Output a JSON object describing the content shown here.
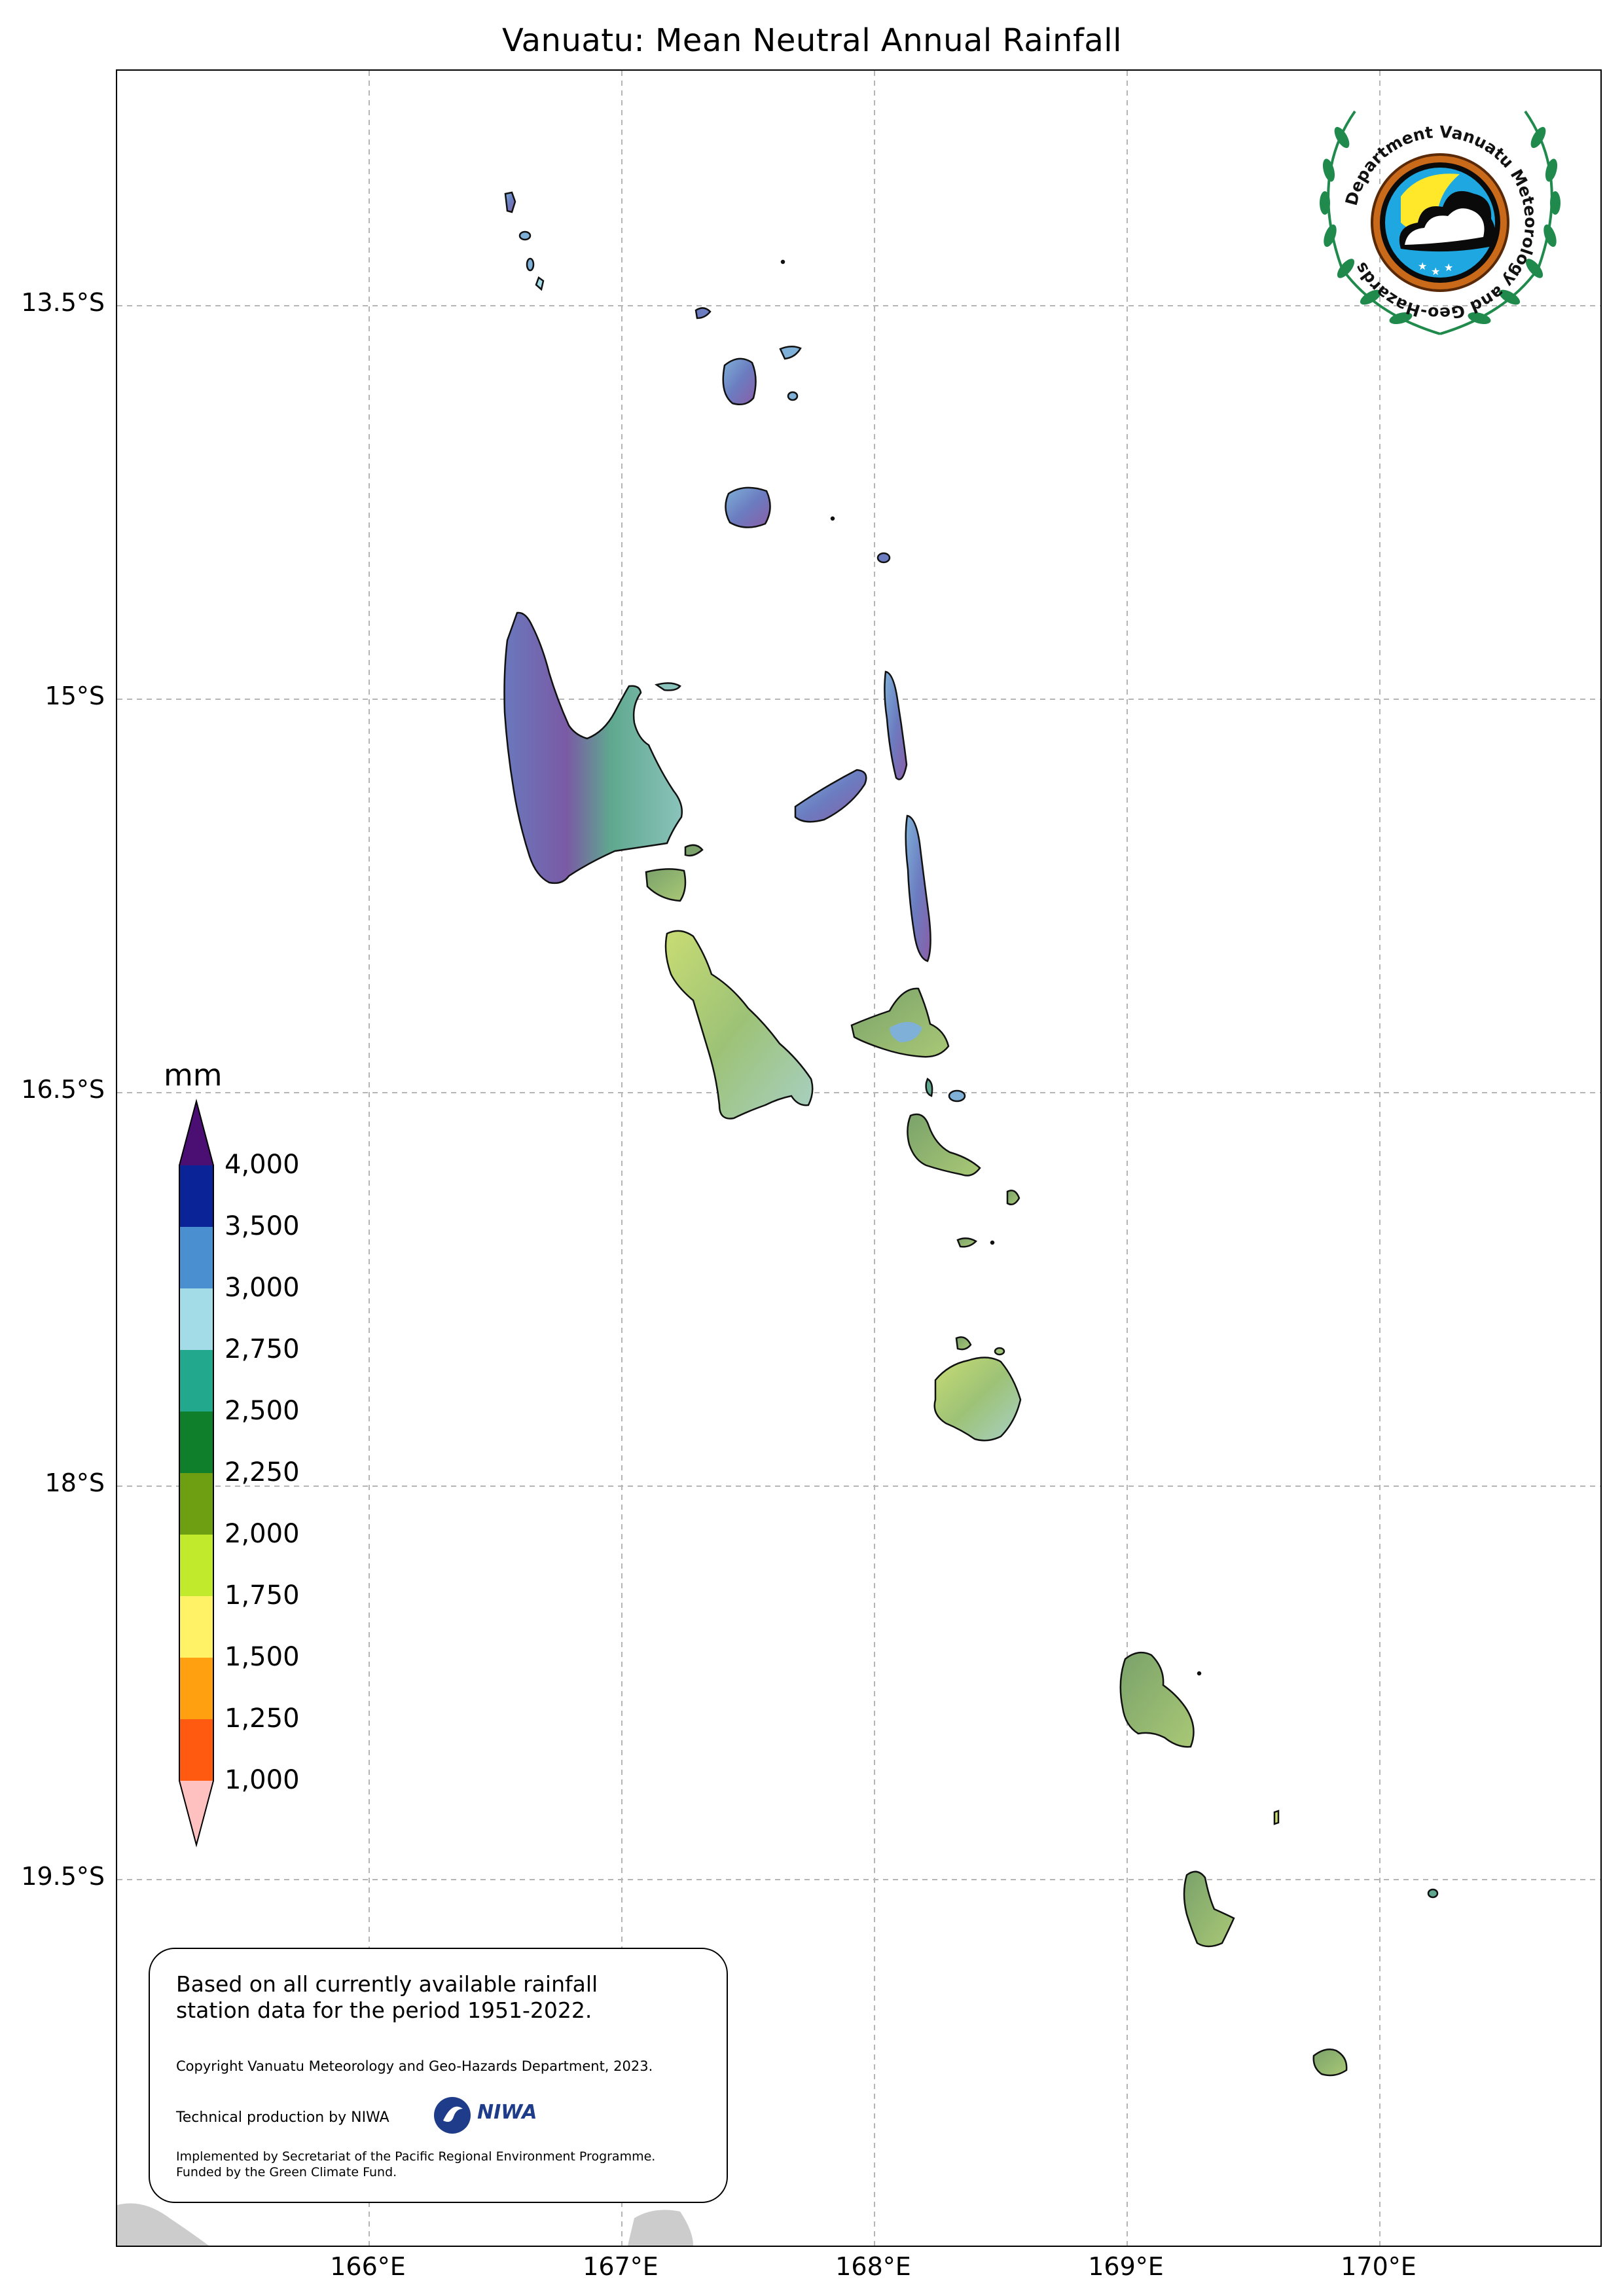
{
  "title": "Vanuatu: Mean Neutral Annual Rainfall",
  "axes": {
    "latitude_labels": [
      "13.5°S",
      "15°S",
      "16.5°S",
      "18°S",
      "19.5°S"
    ],
    "longitude_labels": [
      "166°E",
      "167°E",
      "168°E",
      "169°E",
      "170°E"
    ]
  },
  "colorbar": {
    "unit": "mm",
    "ticks": [
      "4,000",
      "3,500",
      "3,000",
      "2,750",
      "2,500",
      "2,250",
      "2,000",
      "1,750",
      "1,500",
      "1,250",
      "1,000"
    ],
    "colors": [
      "#4b0f73",
      "#0a2397",
      "#4a8fcf",
      "#a3dce6",
      "#22a88c",
      "#0f7f2c",
      "#6e9e12",
      "#c2ea2c",
      "#fff266",
      "#ffa010",
      "#ff5a10",
      "#ffc0c0"
    ]
  },
  "logo": {
    "text": "Department Vanuatu Meteorology and Geo-Hazards"
  },
  "info_box": {
    "main_text": "Based on all currently available rainfall\nstation data for the period 1951-2022.",
    "copyright": "Copyright Vanuatu Meteorology and Geo-Hazards Department, 2023.",
    "technical": "Technical production by NIWA",
    "niwa_name": "NIWA",
    "funding": "Implemented by Secretariat of the Pacific Regional Environment Programme.\nFunded by the Green Climate Fund."
  }
}
